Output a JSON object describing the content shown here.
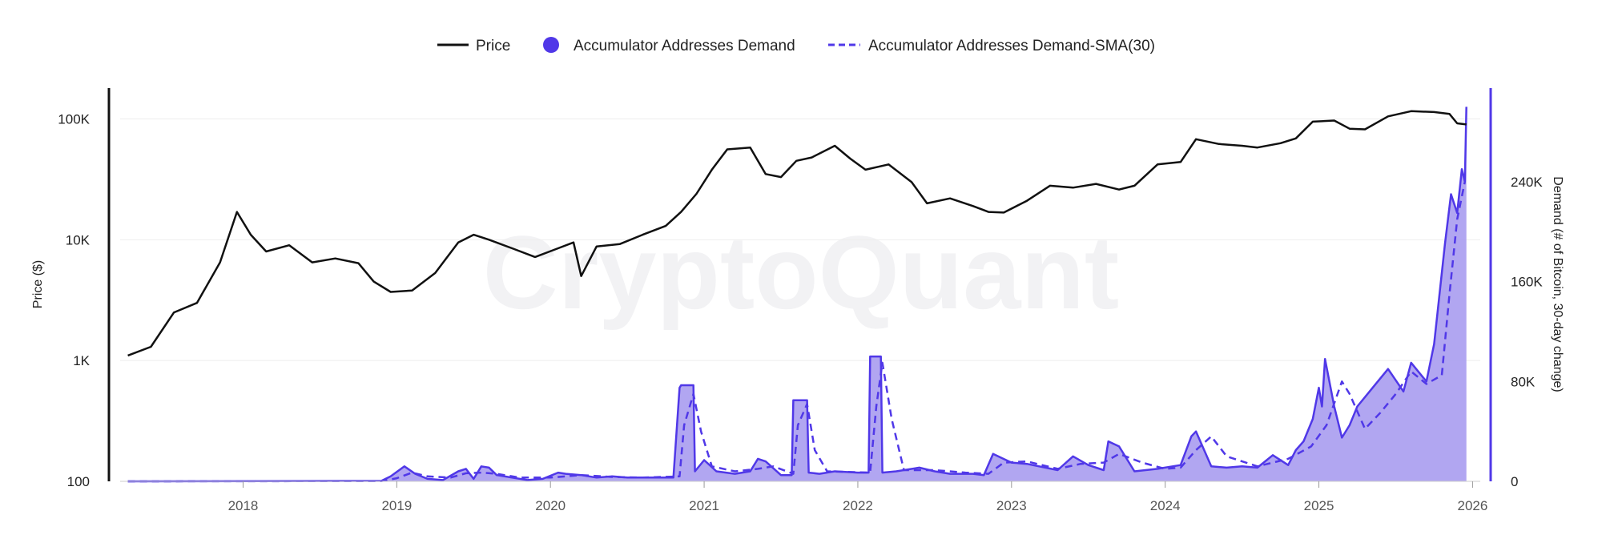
{
  "chart_data": {
    "type": "line",
    "watermark": "CryptoQuant",
    "legend": {
      "position": "top-center",
      "items": [
        {
          "label": "Price",
          "style": "line",
          "color": "#111111"
        },
        {
          "label": "Accumulator Addresses Demand",
          "style": "dot",
          "color": "#5038e8"
        },
        {
          "label": "Accumulator Addresses Demand-SMA(30)",
          "style": "dashed",
          "color": "#5038e8"
        }
      ]
    },
    "x_axis": {
      "range": [
        2017.2,
        2026.05
      ],
      "ticks": [
        {
          "value": 2018,
          "label": "2018"
        },
        {
          "value": 2019,
          "label": "2019"
        },
        {
          "value": 2020,
          "label": "2020"
        },
        {
          "value": 2021,
          "label": "2021"
        },
        {
          "value": 2022,
          "label": "2022"
        },
        {
          "value": 2023,
          "label": "2023"
        },
        {
          "value": 2024,
          "label": "2024"
        },
        {
          "value": 2025,
          "label": "2025"
        },
        {
          "value": 2026,
          "label": "2026"
        }
      ]
    },
    "y_left": {
      "title": "Price ($)",
      "scale": "log",
      "range": [
        100,
        180000
      ],
      "ticks": [
        {
          "value": 100,
          "label": "100"
        },
        {
          "value": 1000,
          "label": "1K"
        },
        {
          "value": 10000,
          "label": "10K"
        },
        {
          "value": 100000,
          "label": "100K"
        }
      ]
    },
    "y_right": {
      "title": "Demand (# of Bitcoin, 30-day change)",
      "scale": "linear",
      "range": [
        0,
        315000
      ],
      "ticks": [
        {
          "value": 0,
          "label": "0"
        },
        {
          "value": 80000,
          "label": "80K"
        },
        {
          "value": 160000,
          "label": "160K"
        },
        {
          "value": 240000,
          "label": "240K"
        }
      ]
    },
    "grid": true,
    "colors": {
      "price": "#111111",
      "demand": "#5038e8",
      "demand_fill": "#a89cf0",
      "grid": "#eeeeee"
    },
    "price_series": {
      "name": "Price",
      "x": [
        2017.25,
        2017.4,
        2017.55,
        2017.7,
        2017.85,
        2017.96,
        2018.05,
        2018.15,
        2018.3,
        2018.45,
        2018.6,
        2018.75,
        2018.85,
        2018.96,
        2019.1,
        2019.25,
        2019.4,
        2019.5,
        2019.6,
        2019.75,
        2019.9,
        2020.05,
        2020.15,
        2020.2,
        2020.3,
        2020.45,
        2020.6,
        2020.75,
        2020.85,
        2020.95,
        2021.05,
        2021.15,
        2021.3,
        2021.4,
        2021.5,
        2021.6,
        2021.7,
        2021.85,
        2021.95,
        2022.05,
        2022.2,
        2022.35,
        2022.45,
        2022.6,
        2022.75,
        2022.85,
        2022.95,
        2023.1,
        2023.25,
        2023.4,
        2023.55,
        2023.7,
        2023.8,
        2023.95,
        2024.1,
        2024.2,
        2024.35,
        2024.5,
        2024.6,
        2024.75,
        2024.85,
        2024.96,
        2025.1,
        2025.2,
        2025.3,
        2025.45,
        2025.6,
        2025.75,
        2025.85,
        2025.9,
        2025.96
      ],
      "values": [
        1100,
        1300,
        2500,
        3000,
        6500,
        17000,
        11000,
        8000,
        9000,
        6500,
        7000,
        6400,
        4500,
        3700,
        3800,
        5300,
        9500,
        11000,
        10000,
        8500,
        7200,
        8500,
        9500,
        5000,
        8800,
        9200,
        11000,
        13000,
        17000,
        24000,
        38000,
        56000,
        58000,
        35000,
        33000,
        45000,
        48000,
        60000,
        47000,
        38000,
        42000,
        30000,
        20000,
        22000,
        19000,
        17000,
        16800,
        21000,
        28000,
        27000,
        29000,
        26000,
        28000,
        42000,
        44000,
        68000,
        62000,
        60000,
        58000,
        63000,
        69000,
        95000,
        97000,
        83000,
        82000,
        105000,
        116000,
        114000,
        110000,
        92000,
        90000
      ]
    },
    "demand_series": {
      "name": "Accumulator Addresses Demand",
      "x": [
        2017.25,
        2018.9,
        2018.96,
        2019.05,
        2019.12,
        2019.2,
        2019.3,
        2019.4,
        2019.45,
        2019.5,
        2019.55,
        2019.6,
        2019.65,
        2019.75,
        2019.85,
        2019.95,
        2020.05,
        2020.1,
        2020.2,
        2020.3,
        2020.4,
        2020.5,
        2020.6,
        2020.75,
        2020.8,
        2020.84,
        2020.85,
        2020.93,
        2020.94,
        2021.0,
        2021.08,
        2021.2,
        2021.3,
        2021.35,
        2021.4,
        2021.5,
        2021.57,
        2021.58,
        2021.67,
        2021.68,
        2021.75,
        2021.85,
        2022.0,
        2022.07,
        2022.08,
        2022.15,
        2022.16,
        2022.25,
        2022.4,
        2022.5,
        2022.6,
        2022.75,
        2022.82,
        2022.88,
        2023.0,
        2023.1,
        2023.3,
        2023.4,
        2023.5,
        2023.6,
        2023.63,
        2023.7,
        2023.8,
        2023.95,
        2024.1,
        2024.17,
        2024.2,
        2024.3,
        2024.4,
        2024.5,
        2024.6,
        2024.7,
        2024.8,
        2024.85,
        2024.9,
        2024.96,
        2025.0,
        2025.02,
        2025.04,
        2025.1,
        2025.15,
        2025.2,
        2025.25,
        2025.35,
        2025.45,
        2025.55,
        2025.6,
        2025.7,
        2025.75,
        2025.82,
        2025.86,
        2025.9,
        2025.93,
        2025.95,
        2025.96
      ],
      "values": [
        0,
        400,
        4000,
        12000,
        6000,
        2000,
        1000,
        8000,
        10000,
        2000,
        12000,
        11000,
        5000,
        3000,
        1000,
        2000,
        7000,
        6000,
        5000,
        3000,
        4000,
        3000,
        3000,
        3000,
        3000,
        75000,
        77000,
        77000,
        8000,
        17000,
        8000,
        6000,
        8000,
        18000,
        16000,
        5000,
        5000,
        65000,
        65000,
        7000,
        6000,
        8000,
        7000,
        7000,
        100000,
        100000,
        7000,
        8000,
        11000,
        8000,
        6000,
        6000,
        5000,
        22000,
        15000,
        14000,
        9000,
        20000,
        13000,
        9000,
        32000,
        28000,
        8000,
        10000,
        13000,
        36000,
        40000,
        12000,
        11000,
        12000,
        11000,
        21000,
        13000,
        25000,
        32000,
        50000,
        75000,
        60000,
        98000,
        60000,
        35000,
        45000,
        60000,
        75000,
        90000,
        72000,
        95000,
        80000,
        110000,
        190000,
        230000,
        215000,
        250000,
        240000,
        300000
      ]
    },
    "sma_series": {
      "name": "Accumulator Addresses Demand-SMA(30)",
      "x": [
        2017.25,
        2018.9,
        2019.0,
        2019.1,
        2019.2,
        2019.35,
        2019.45,
        2019.55,
        2019.65,
        2019.8,
        2020.0,
        2020.2,
        2020.4,
        2020.6,
        2020.84,
        2020.87,
        2020.93,
        2020.98,
        2021.05,
        2021.2,
        2021.35,
        2021.45,
        2021.58,
        2021.61,
        2021.67,
        2021.72,
        2021.8,
        2022.08,
        2022.12,
        2022.16,
        2022.22,
        2022.3,
        2022.5,
        2022.7,
        2022.85,
        2022.95,
        2023.1,
        2023.3,
        2023.45,
        2023.6,
        2023.7,
        2023.85,
        2024.0,
        2024.1,
        2024.2,
        2024.3,
        2024.4,
        2024.6,
        2024.8,
        2024.95,
        2025.05,
        2025.15,
        2025.2,
        2025.3,
        2025.4,
        2025.5,
        2025.6,
        2025.7,
        2025.8,
        2025.85,
        2025.9,
        2025.95
      ],
      "values": [
        0,
        200,
        2500,
        7000,
        4000,
        3000,
        6500,
        7000,
        6000,
        3000,
        3000,
        5000,
        3500,
        3000,
        4000,
        45000,
        70000,
        40000,
        12000,
        8000,
        10000,
        12000,
        6000,
        45000,
        62000,
        25000,
        8000,
        7000,
        60000,
        95000,
        50000,
        9000,
        9000,
        7000,
        6000,
        15000,
        16000,
        10000,
        14000,
        15000,
        22000,
        15000,
        10000,
        11000,
        25000,
        36000,
        20000,
        12000,
        18000,
        28000,
        45000,
        80000,
        70000,
        42000,
        55000,
        70000,
        88000,
        78000,
        85000,
        150000,
        210000,
        240000
      ]
    }
  }
}
